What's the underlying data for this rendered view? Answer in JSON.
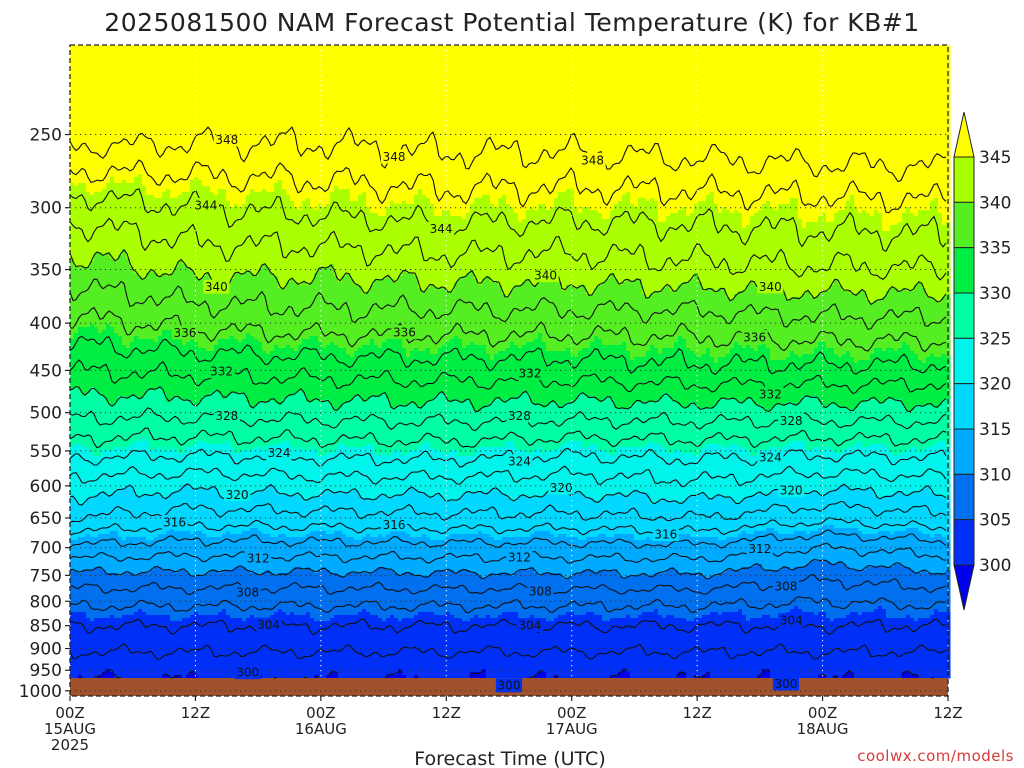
{
  "chart_data": {
    "type": "heatmap",
    "title": "2025081500 NAM Forecast Potential Temperature (K) for KB#1",
    "xlabel": "Forecast Time (UTC)",
    "ylabel": "",
    "credit": "coolwx.com/models",
    "y_axis": {
      "scale": "log-pressure",
      "reversed": true,
      "range": [
        200,
        1013
      ],
      "ticks": [
        250,
        300,
        350,
        400,
        450,
        500,
        550,
        600,
        650,
        700,
        750,
        800,
        850,
        900,
        950,
        1000
      ]
    },
    "x_axis": {
      "range_hours": [
        0,
        84
      ],
      "ticks": [
        {
          "hour": 0,
          "line1": "00Z",
          "line2": "15AUG",
          "line3": "2025"
        },
        {
          "hour": 12,
          "line1": "12Z",
          "line2": "",
          "line3": ""
        },
        {
          "hour": 24,
          "line1": "00Z",
          "line2": "16AUG",
          "line3": ""
        },
        {
          "hour": 36,
          "line1": "12Z",
          "line2": "",
          "line3": ""
        },
        {
          "hour": 48,
          "line1": "00Z",
          "line2": "17AUG",
          "line3": ""
        },
        {
          "hour": 60,
          "line1": "12Z",
          "line2": "",
          "line3": ""
        },
        {
          "hour": 72,
          "line1": "00Z",
          "line2": "18AUG",
          "line3": ""
        },
        {
          "hour": 84,
          "line1": "12Z",
          "line2": "",
          "line3": ""
        }
      ]
    },
    "grid": true,
    "colorbar": {
      "labels": [
        "300",
        "305",
        "310",
        "315",
        "320",
        "325",
        "330",
        "335",
        "340",
        "345"
      ],
      "bins": [
        {
          "min": 295,
          "max": 300,
          "color": "#0000ee"
        },
        {
          "min": 300,
          "max": 305,
          "color": "#0030f8"
        },
        {
          "min": 305,
          "max": 310,
          "color": "#0070ee"
        },
        {
          "min": 310,
          "max": 315,
          "color": "#00aaff"
        },
        {
          "min": 315,
          "max": 320,
          "color": "#00d8ff"
        },
        {
          "min": 320,
          "max": 325,
          "color": "#00f4ec"
        },
        {
          "min": 325,
          "max": 330,
          "color": "#00ffa4"
        },
        {
          "min": 330,
          "max": 335,
          "color": "#00ee44"
        },
        {
          "min": 335,
          "max": 340,
          "color": "#55ee22"
        },
        {
          "min": 340,
          "max": 345,
          "color": "#aaff00"
        },
        {
          "min": 345,
          "max": 355,
          "color": "#ffff00"
        }
      ]
    },
    "surface_color": "#a0522d",
    "profiles": [
      {
        "hour": 0,
        "pressure": [
          250,
          300,
          350,
          400,
          450,
          500,
          550,
          600,
          650,
          700,
          750,
          800,
          850,
          900,
          950,
          1000
        ],
        "theta": [
          349,
          343,
          339,
          335.5,
          332,
          328.5,
          324.8,
          321,
          318,
          313.5,
          309.5,
          306.5,
          304,
          302.3,
          300.5,
          299
        ]
      },
      {
        "hour": 12,
        "pressure": [
          250,
          300,
          350,
          400,
          450,
          500,
          550,
          600,
          650,
          700,
          750,
          800,
          850,
          900,
          950,
          1000
        ],
        "theta": [
          348.5,
          344,
          340.5,
          336.5,
          332.5,
          328.5,
          324.5,
          320.5,
          317,
          313,
          309.5,
          306.5,
          304,
          302.3,
          300.5,
          299.5
        ]
      },
      {
        "hour": 24,
        "pressure": [
          250,
          300,
          350,
          400,
          450,
          500,
          550,
          600,
          650,
          700,
          750,
          800,
          850,
          900,
          950,
          1000
        ],
        "theta": [
          348.5,
          344.5,
          340.5,
          337,
          332.8,
          328.8,
          324.8,
          321,
          317.2,
          313.2,
          309.5,
          306.5,
          304,
          302.3,
          300.5,
          299.5
        ]
      },
      {
        "hour": 36,
        "pressure": [
          250,
          300,
          350,
          400,
          450,
          500,
          550,
          600,
          650,
          700,
          750,
          800,
          850,
          900,
          950,
          1000
        ],
        "theta": [
          349,
          345,
          341,
          337,
          333,
          329,
          325,
          321,
          317.5,
          313.3,
          309.7,
          306.5,
          304,
          302.3,
          300.5,
          299.5
        ]
      },
      {
        "hour": 48,
        "pressure": [
          250,
          300,
          350,
          400,
          450,
          500,
          550,
          600,
          650,
          700,
          750,
          800,
          850,
          900,
          950,
          1000
        ],
        "theta": [
          349,
          344.8,
          341,
          337,
          333,
          328.8,
          324.5,
          320.8,
          317.5,
          313.3,
          309.7,
          306.5,
          304,
          302.3,
          300.5,
          299.5
        ]
      },
      {
        "hour": 60,
        "pressure": [
          250,
          300,
          350,
          400,
          450,
          500,
          550,
          600,
          650,
          700,
          750,
          800,
          850,
          900,
          950,
          1000
        ],
        "theta": [
          349.5,
          345,
          341.5,
          337,
          333.5,
          329,
          324.8,
          321.5,
          318,
          313.5,
          309.8,
          306.5,
          304,
          302.3,
          300.5,
          299.5
        ]
      },
      {
        "hour": 72,
        "pressure": [
          250,
          300,
          350,
          400,
          450,
          500,
          550,
          600,
          650,
          700,
          750,
          800,
          850,
          900,
          950,
          1000
        ],
        "theta": [
          349.8,
          345.3,
          341.8,
          337.5,
          333.5,
          329,
          324.5,
          320.5,
          316.5,
          312,
          308.5,
          306,
          304,
          302.3,
          300.5,
          299.5
        ]
      },
      {
        "hour": 84,
        "pressure": [
          250,
          300,
          350,
          400,
          450,
          500,
          550,
          600,
          650,
          700,
          750,
          800,
          850,
          900,
          950,
          1000
        ],
        "theta": [
          350,
          345.5,
          342,
          337.5,
          333.5,
          329,
          324.8,
          321,
          317.5,
          313,
          309.5,
          306.5,
          304,
          302.3,
          300.5,
          299.5
        ]
      }
    ],
    "contour_levels": [
      300,
      302,
      304,
      306,
      308,
      310,
      312,
      314,
      316,
      318,
      320,
      322,
      324,
      326,
      328,
      330,
      332,
      334,
      336,
      338,
      340,
      342,
      344,
      346,
      348
    ],
    "contour_labels": [
      {
        "text": "348",
        "hour": 15,
        "level": 348
      },
      {
        "text": "348",
        "hour": 31,
        "level": 348
      },
      {
        "text": "348",
        "hour": 50,
        "level": 348
      },
      {
        "text": "344",
        "hour": 13,
        "level": 344
      },
      {
        "text": "344",
        "hour": 35.5,
        "level": 344
      },
      {
        "text": "340",
        "hour": 14,
        "level": 340
      },
      {
        "text": "340",
        "hour": 45.5,
        "level": 340
      },
      {
        "text": "340",
        "hour": 67,
        "level": 340
      },
      {
        "text": "336",
        "hour": 11,
        "level": 336
      },
      {
        "text": "336",
        "hour": 32,
        "level": 336
      },
      {
        "text": "336",
        "hour": 65.5,
        "level": 336
      },
      {
        "text": "332",
        "hour": 14.5,
        "level": 332
      },
      {
        "text": "332",
        "hour": 44,
        "level": 332
      },
      {
        "text": "332",
        "hour": 67,
        "level": 332
      },
      {
        "text": "328",
        "hour": 15,
        "level": 328
      },
      {
        "text": "328",
        "hour": 43,
        "level": 328
      },
      {
        "text": "328",
        "hour": 69,
        "level": 328
      },
      {
        "text": "324",
        "hour": 20,
        "level": 324
      },
      {
        "text": "324",
        "hour": 43,
        "level": 324
      },
      {
        "text": "324",
        "hour": 67,
        "level": 324
      },
      {
        "text": "320",
        "hour": 16,
        "level": 320
      },
      {
        "text": "320",
        "hour": 47,
        "level": 320
      },
      {
        "text": "320",
        "hour": 69,
        "level": 320
      },
      {
        "text": "316",
        "hour": 10,
        "level": 316
      },
      {
        "text": "316",
        "hour": 31,
        "level": 316
      },
      {
        "text": "316",
        "hour": 57,
        "level": 316
      },
      {
        "text": "312",
        "hour": 18,
        "level": 312
      },
      {
        "text": "312",
        "hour": 43,
        "level": 312
      },
      {
        "text": "312",
        "hour": 66,
        "level": 312
      },
      {
        "text": "308",
        "hour": 17,
        "level": 308
      },
      {
        "text": "308",
        "hour": 45,
        "level": 308
      },
      {
        "text": "308",
        "hour": 68.5,
        "level": 308
      },
      {
        "text": "304",
        "hour": 19,
        "level": 304
      },
      {
        "text": "304",
        "hour": 44,
        "level": 304
      },
      {
        "text": "304",
        "hour": 69,
        "level": 304
      },
      {
        "text": "300",
        "hour": 17,
        "level": 300
      },
      {
        "text": "300",
        "hour": 42,
        "level": 300
      },
      {
        "text": "300",
        "hour": 68.5,
        "level": 300
      }
    ]
  }
}
